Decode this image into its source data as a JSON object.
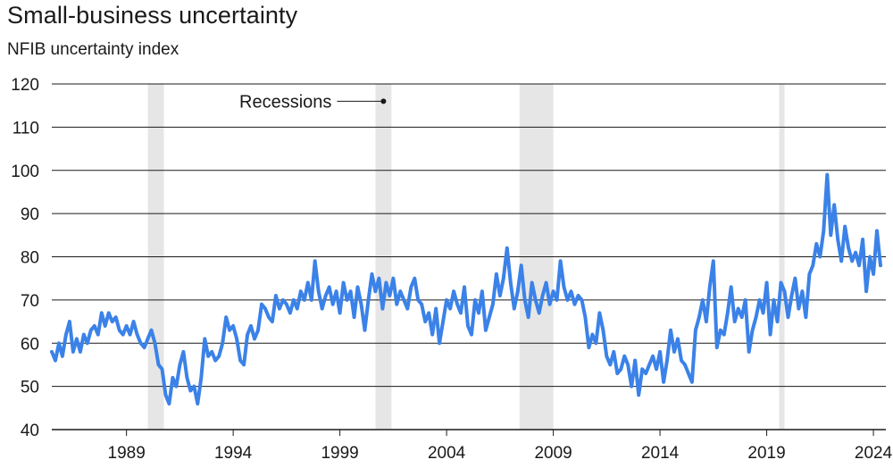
{
  "chart_data": {
    "type": "line",
    "title": "Small-business uncertainty",
    "subtitle": "NFIB uncertainty index",
    "xlabel": "",
    "ylabel": "",
    "ylim": [
      40,
      120
    ],
    "xlim": [
      "1986-01",
      "2025-02"
    ],
    "y_ticks": [
      40,
      50,
      60,
      70,
      80,
      90,
      100,
      110,
      120
    ],
    "x_ticks": [
      1989,
      1994,
      1999,
      2004,
      2009,
      2014,
      2019,
      2024
    ],
    "grid": "horizontal",
    "annotation": "Recessions",
    "recessions": [
      {
        "start": "1990-07",
        "end": "1991-03"
      },
      {
        "start": "2001-03",
        "end": "2001-11"
      },
      {
        "start": "2007-12",
        "end": "2009-06"
      },
      {
        "start": "2020-02",
        "end": "2020-04"
      }
    ],
    "colors": {
      "line": "#3B82E8",
      "recession": "#E6E6E6",
      "grid": "#1a1a1a"
    },
    "series": [
      {
        "points": [
          [
            "1986-01",
            58
          ],
          [
            "1986-03",
            56
          ],
          [
            "1986-05",
            60
          ],
          [
            "1986-07",
            57
          ],
          [
            "1986-09",
            62
          ],
          [
            "1986-11",
            65
          ],
          [
            "1987-01",
            58
          ],
          [
            "1987-03",
            61
          ],
          [
            "1987-05",
            58
          ],
          [
            "1987-07",
            62
          ],
          [
            "1987-09",
            60
          ],
          [
            "1987-11",
            63
          ],
          [
            "1988-01",
            64
          ],
          [
            "1988-03",
            62
          ],
          [
            "1988-05",
            67
          ],
          [
            "1988-07",
            64
          ],
          [
            "1988-09",
            67
          ],
          [
            "1988-11",
            65
          ],
          [
            "1989-01",
            66
          ],
          [
            "1989-03",
            63
          ],
          [
            "1989-05",
            62
          ],
          [
            "1989-07",
            64
          ],
          [
            "1989-09",
            62
          ],
          [
            "1989-11",
            65
          ],
          [
            "1990-01",
            62
          ],
          [
            "1990-03",
            60
          ],
          [
            "1990-05",
            59
          ],
          [
            "1990-07",
            61
          ],
          [
            "1990-09",
            63
          ],
          [
            "1990-11",
            60
          ],
          [
            "1991-01",
            55
          ],
          [
            "1991-03",
            54
          ],
          [
            "1991-05",
            48
          ],
          [
            "1991-07",
            46
          ],
          [
            "1991-09",
            52
          ],
          [
            "1991-11",
            50
          ],
          [
            "1992-01",
            55
          ],
          [
            "1992-03",
            58
          ],
          [
            "1992-05",
            52
          ],
          [
            "1992-07",
            49
          ],
          [
            "1992-09",
            50
          ],
          [
            "1992-11",
            46
          ],
          [
            "1993-01",
            52
          ],
          [
            "1993-03",
            61
          ],
          [
            "1993-05",
            57
          ],
          [
            "1993-07",
            58
          ],
          [
            "1993-09",
            56
          ],
          [
            "1993-11",
            57
          ],
          [
            "1994-01",
            60
          ],
          [
            "1994-03",
            66
          ],
          [
            "1994-05",
            63
          ],
          [
            "1994-07",
            64
          ],
          [
            "1994-09",
            61
          ],
          [
            "1994-11",
            56
          ],
          [
            "1995-01",
            55
          ],
          [
            "1995-03",
            62
          ],
          [
            "1995-05",
            64
          ],
          [
            "1995-07",
            61
          ],
          [
            "1995-09",
            63
          ],
          [
            "1995-11",
            69
          ],
          [
            "1996-01",
            68
          ],
          [
            "1996-03",
            66
          ],
          [
            "1996-05",
            65
          ],
          [
            "1996-07",
            71
          ],
          [
            "1996-09",
            68
          ],
          [
            "1996-11",
            70
          ],
          [
            "1997-01",
            69
          ],
          [
            "1997-03",
            67
          ],
          [
            "1997-05",
            70
          ],
          [
            "1997-07",
            68
          ],
          [
            "1997-09",
            72
          ],
          [
            "1997-11",
            70
          ],
          [
            "1998-01",
            74
          ],
          [
            "1998-03",
            70
          ],
          [
            "1998-05",
            79
          ],
          [
            "1998-07",
            72
          ],
          [
            "1998-09",
            68
          ],
          [
            "1998-11",
            71
          ],
          [
            "1999-01",
            73
          ],
          [
            "1999-03",
            69
          ],
          [
            "1999-05",
            72
          ],
          [
            "1999-07",
            67
          ],
          [
            "1999-09",
            74
          ],
          [
            "1999-11",
            70
          ],
          [
            "2000-01",
            72
          ],
          [
            "2000-03",
            66
          ],
          [
            "2000-05",
            73
          ],
          [
            "2000-07",
            69
          ],
          [
            "2000-09",
            63
          ],
          [
            "2000-11",
            70
          ],
          [
            "2001-01",
            76
          ],
          [
            "2001-03",
            72
          ],
          [
            "2001-05",
            75
          ],
          [
            "2001-07",
            68
          ],
          [
            "2001-09",
            74
          ],
          [
            "2001-11",
            71
          ],
          [
            "2002-01",
            75
          ],
          [
            "2002-03",
            69
          ],
          [
            "2002-05",
            72
          ],
          [
            "2002-07",
            70
          ],
          [
            "2002-09",
            68
          ],
          [
            "2002-11",
            73
          ],
          [
            "2003-01",
            75
          ],
          [
            "2003-03",
            70
          ],
          [
            "2003-05",
            69
          ],
          [
            "2003-07",
            65
          ],
          [
            "2003-09",
            67
          ],
          [
            "2003-11",
            62
          ],
          [
            "2004-01",
            68
          ],
          [
            "2004-03",
            60
          ],
          [
            "2004-05",
            65
          ],
          [
            "2004-07",
            70
          ],
          [
            "2004-09",
            68
          ],
          [
            "2004-11",
            72
          ],
          [
            "2005-01",
            69
          ],
          [
            "2005-03",
            67
          ],
          [
            "2005-05",
            73
          ],
          [
            "2005-07",
            64
          ],
          [
            "2005-09",
            62
          ],
          [
            "2005-11",
            70
          ],
          [
            "2006-01",
            67
          ],
          [
            "2006-03",
            72
          ],
          [
            "2006-05",
            63
          ],
          [
            "2006-07",
            66
          ],
          [
            "2006-09",
            69
          ],
          [
            "2006-11",
            76
          ],
          [
            "2007-01",
            71
          ],
          [
            "2007-03",
            75
          ],
          [
            "2007-05",
            82
          ],
          [
            "2007-07",
            74
          ],
          [
            "2007-09",
            68
          ],
          [
            "2007-11",
            72
          ],
          [
            "2008-01",
            78
          ],
          [
            "2008-03",
            70
          ],
          [
            "2008-05",
            66
          ],
          [
            "2008-07",
            74
          ],
          [
            "2008-09",
            70
          ],
          [
            "2008-11",
            67
          ],
          [
            "2009-01",
            71
          ],
          [
            "2009-03",
            74
          ],
          [
            "2009-05",
            69
          ],
          [
            "2009-07",
            72
          ],
          [
            "2009-09",
            70
          ],
          [
            "2009-11",
            79
          ],
          [
            "2010-01",
            73
          ],
          [
            "2010-03",
            70
          ],
          [
            "2010-05",
            72
          ],
          [
            "2010-07",
            69
          ],
          [
            "2010-09",
            71
          ],
          [
            "2010-11",
            70
          ],
          [
            "2011-01",
            66
          ],
          [
            "2011-03",
            59
          ],
          [
            "2011-05",
            62
          ],
          [
            "2011-07",
            60
          ],
          [
            "2011-09",
            67
          ],
          [
            "2011-11",
            63
          ],
          [
            "2012-01",
            57
          ],
          [
            "2012-03",
            55
          ],
          [
            "2012-05",
            58
          ],
          [
            "2012-07",
            53
          ],
          [
            "2012-09",
            54
          ],
          [
            "2012-11",
            57
          ],
          [
            "2013-01",
            55
          ],
          [
            "2013-03",
            50
          ],
          [
            "2013-05",
            56
          ],
          [
            "2013-07",
            48
          ],
          [
            "2013-09",
            54
          ],
          [
            "2013-11",
            53
          ],
          [
            "2014-01",
            55
          ],
          [
            "2014-03",
            57
          ],
          [
            "2014-05",
            54
          ],
          [
            "2014-07",
            58
          ],
          [
            "2014-09",
            51
          ],
          [
            "2014-11",
            56
          ],
          [
            "2015-01",
            63
          ],
          [
            "2015-03",
            58
          ],
          [
            "2015-05",
            61
          ],
          [
            "2015-07",
            56
          ],
          [
            "2015-09",
            55
          ],
          [
            "2015-11",
            53
          ],
          [
            "2016-01",
            51
          ],
          [
            "2016-03",
            63
          ],
          [
            "2016-05",
            66
          ],
          [
            "2016-07",
            70
          ],
          [
            "2016-09",
            65
          ],
          [
            "2016-11",
            73
          ],
          [
            "2017-01",
            79
          ],
          [
            "2017-03",
            59
          ],
          [
            "2017-05",
            63
          ],
          [
            "2017-07",
            62
          ],
          [
            "2017-09",
            67
          ],
          [
            "2017-11",
            73
          ],
          [
            "2018-01",
            65
          ],
          [
            "2018-03",
            68
          ],
          [
            "2018-05",
            66
          ],
          [
            "2018-07",
            70
          ],
          [
            "2018-09",
            58
          ],
          [
            "2018-11",
            63
          ],
          [
            "2019-01",
            66
          ],
          [
            "2019-03",
            70
          ],
          [
            "2019-05",
            67
          ],
          [
            "2019-07",
            74
          ],
          [
            "2019-09",
            62
          ],
          [
            "2019-11",
            70
          ],
          [
            "2020-01",
            65
          ],
          [
            "2020-03",
            74
          ],
          [
            "2020-05",
            72
          ],
          [
            "2020-07",
            66
          ],
          [
            "2020-09",
            71
          ],
          [
            "2020-11",
            75
          ],
          [
            "2021-01",
            68
          ],
          [
            "2021-03",
            72
          ],
          [
            "2021-05",
            66
          ],
          [
            "2021-07",
            76
          ],
          [
            "2021-09",
            78
          ],
          [
            "2021-11",
            83
          ],
          [
            "2022-01",
            80
          ],
          [
            "2022-03",
            86
          ],
          [
            "2022-05",
            99
          ],
          [
            "2022-07",
            85
          ],
          [
            "2022-09",
            92
          ],
          [
            "2022-11",
            84
          ],
          [
            "2023-01",
            79
          ],
          [
            "2023-03",
            87
          ],
          [
            "2023-05",
            82
          ],
          [
            "2023-07",
            79
          ],
          [
            "2023-09",
            81
          ],
          [
            "2023-11",
            78
          ],
          [
            "2024-01",
            84
          ],
          [
            "2024-03",
            72
          ],
          [
            "2024-05",
            80
          ],
          [
            "2024-07",
            76
          ],
          [
            "2024-09",
            86
          ],
          [
            "2024-11",
            78
          ]
        ]
      }
    ]
  }
}
